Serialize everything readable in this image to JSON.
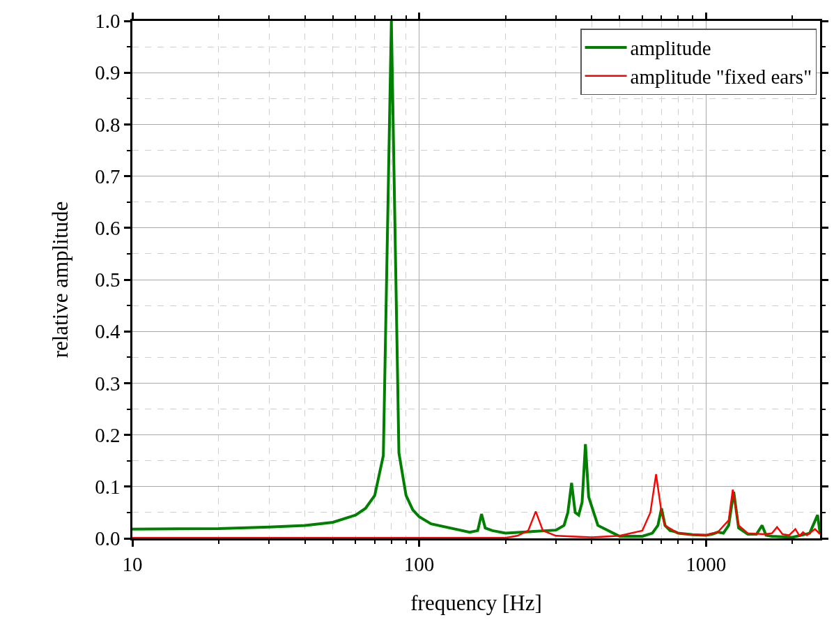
{
  "chart_data": {
    "type": "line",
    "xlabel": "frequency [Hz]",
    "ylabel": "relative amplitude",
    "log": "x",
    "grid": true,
    "legend": "top right",
    "marker": "none",
    "line_style": "solid",
    "xlim": [
      10,
      2500
    ],
    "xticks": [
      10,
      {
        "value": 20,
        "label": null
      },
      {
        "value": 30,
        "label": null
      },
      {
        "value": 40,
        "label": null
      },
      {
        "value": 50,
        "label": null
      },
      {
        "value": 60,
        "label": null
      },
      {
        "value": 70,
        "label": null
      },
      {
        "value": 80,
        "label": null
      },
      {
        "value": 90,
        "label": null
      },
      100,
      {
        "value": 200,
        "label": null
      },
      {
        "value": 300,
        "label": null
      },
      {
        "value": 400,
        "label": null
      },
      {
        "value": 500,
        "label": null
      },
      {
        "value": 600,
        "label": null
      },
      {
        "value": 700,
        "label": null
      },
      {
        "value": 800,
        "label": null
      },
      {
        "value": 900,
        "label": null
      },
      1000,
      {
        "value": 2000,
        "label": null
      }
    ],
    "ylim": [
      0,
      1
    ],
    "yticks": [
      {
        "value": 0,
        "label": "0.0"
      },
      {
        "value": 0.05,
        "label": null
      },
      {
        "value": 0.1,
        "label": "0.1"
      },
      {
        "value": 0.15,
        "label": null
      },
      {
        "value": 0.2,
        "label": "0.2"
      },
      {
        "value": 0.25,
        "label": null
      },
      {
        "value": 0.3,
        "label": "0.3"
      },
      {
        "value": 0.35,
        "label": null
      },
      {
        "value": 0.4,
        "label": "0.4"
      },
      {
        "value": 0.45,
        "label": null
      },
      {
        "value": 0.5,
        "label": "0.5"
      },
      {
        "value": 0.55,
        "label": null
      },
      {
        "value": 0.6,
        "label": "0.6"
      },
      {
        "value": 0.65,
        "label": null
      },
      {
        "value": 0.7,
        "label": "0.7"
      },
      {
        "value": 0.75,
        "label": null
      },
      {
        "value": 0.8,
        "label": "0.8"
      },
      {
        "value": 0.85,
        "label": null
      },
      {
        "value": 0.9,
        "label": "0.9"
      },
      {
        "value": 0.95,
        "label": null
      },
      {
        "value": 1,
        "label": "1.0"
      }
    ],
    "series": [
      {
        "name": "amplitude",
        "color": "#008000",
        "x": [
          10,
          20,
          30,
          40,
          50,
          60,
          65,
          70,
          75,
          80,
          85,
          90,
          95,
          100,
          110,
          150,
          160,
          165,
          170,
          180,
          200,
          300,
          320,
          330,
          340,
          350,
          360,
          370,
          380,
          390,
          420,
          500,
          600,
          650,
          680,
          700,
          720,
          750,
          780,
          800,
          900,
          1000,
          1050,
          1100,
          1150,
          1200,
          1250,
          1300,
          1400,
          1500,
          1570,
          1620,
          1700,
          2000,
          2300,
          2450,
          2500
        ],
        "values": [
          0.018,
          0.019,
          0.022,
          0.025,
          0.031,
          0.045,
          0.058,
          0.083,
          0.16,
          1.0,
          0.165,
          0.083,
          0.055,
          0.042,
          0.028,
          0.012,
          0.015,
          0.047,
          0.02,
          0.015,
          0.01,
          0.016,
          0.025,
          0.05,
          0.107,
          0.05,
          0.045,
          0.07,
          0.182,
          0.08,
          0.025,
          0.004,
          0.004,
          0.01,
          0.025,
          0.058,
          0.025,
          0.015,
          0.013,
          0.01,
          0.007,
          0.006,
          0.008,
          0.012,
          0.01,
          0.025,
          0.09,
          0.02,
          0.008,
          0.008,
          0.025,
          0.006,
          0.004,
          0.002,
          0.01,
          0.045,
          0.01
        ]
      },
      {
        "name": "amplitude \"fixed ears\"",
        "color": "#ff0000",
        "x": [
          10,
          100,
          200,
          220,
          240,
          255,
          270,
          300,
          400,
          500,
          600,
          640,
          670,
          700,
          720,
          800,
          900,
          1000,
          1050,
          1100,
          1200,
          1240,
          1300,
          1400,
          1600,
          1700,
          1770,
          1850,
          1950,
          2050,
          2120,
          2180,
          2250,
          2400,
          2500
        ],
        "values": [
          0.001,
          0.001,
          0.001,
          0.005,
          0.015,
          0.052,
          0.015,
          0.005,
          0.002,
          0.005,
          0.015,
          0.05,
          0.124,
          0.05,
          0.025,
          0.01,
          0.007,
          0.006,
          0.01,
          0.012,
          0.035,
          0.094,
          0.025,
          0.01,
          0.008,
          0.01,
          0.022,
          0.008,
          0.006,
          0.018,
          0.005,
          0.012,
          0.006,
          0.018,
          0.008
        ]
      }
    ]
  }
}
